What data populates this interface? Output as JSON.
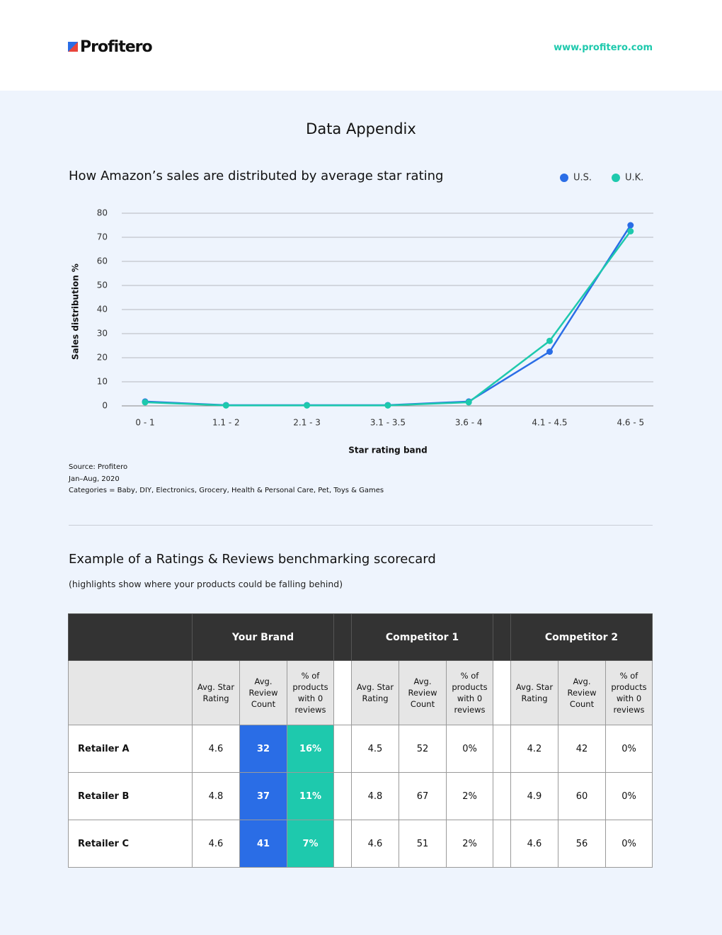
{
  "header": {
    "logo": "Profitero",
    "url": "www.profitero.com"
  },
  "title": "Data Appendix",
  "chart_data": {
    "type": "line",
    "title": "How Amazon’s sales are distributed by average star rating",
    "x_label": "Star rating band",
    "y_label": "Sales distribution %",
    "categories": [
      "0 - 1",
      "1.1 - 2",
      "2.1 - 3",
      "3.1 - 3.5",
      "3.6 - 4",
      "4.1 - 4.5",
      "4.6 - 5"
    ],
    "series": [
      {
        "name": "U.S.",
        "color": "#2a6de6",
        "values": [
          1.8,
          0.3,
          0.3,
          0.3,
          1.8,
          22.5,
          75
        ]
      },
      {
        "name": "U.K.",
        "color": "#1ec9ad",
        "values": [
          1.5,
          0.2,
          0.2,
          0.2,
          1.5,
          27,
          72.5
        ]
      }
    ],
    "ylim": [
      0,
      80
    ],
    "yticks": [
      0,
      10,
      20,
      30,
      40,
      50,
      60,
      70,
      80
    ],
    "grid": true,
    "legend": "top-right"
  },
  "notes": [
    "Source: Profitero",
    "Jan–Aug, 2020",
    "Categories = Baby, DIY, Electronics, Grocery, Health & Personal Care, Pet, Toys & Games"
  ],
  "scorecard": {
    "title": "Example of a Ratings & Reviews benchmarking scorecard",
    "subtitle": "(highlights show where your products could be falling behind)",
    "groups": [
      "Your Brand",
      "Competitor 1",
      "Competitor 2"
    ],
    "columns": [
      "Avg. Star Rating",
      "Avg. Review Count",
      "% of products with 0 reviews"
    ],
    "rows": [
      {
        "label": "Retailer A",
        "cells": [
          "4.6",
          "32",
          "16%",
          "4.5",
          "52",
          "0%",
          "4.2",
          "42",
          "0%"
        ]
      },
      {
        "label": "Retailer B",
        "cells": [
          "4.8",
          "37",
          "11%",
          "4.8",
          "67",
          "2%",
          "4.9",
          "60",
          "0%"
        ]
      },
      {
        "label": "Retailer C",
        "cells": [
          "4.6",
          "41",
          "7%",
          "4.6",
          "51",
          "2%",
          "4.6",
          "56",
          "0%"
        ]
      }
    ]
  }
}
